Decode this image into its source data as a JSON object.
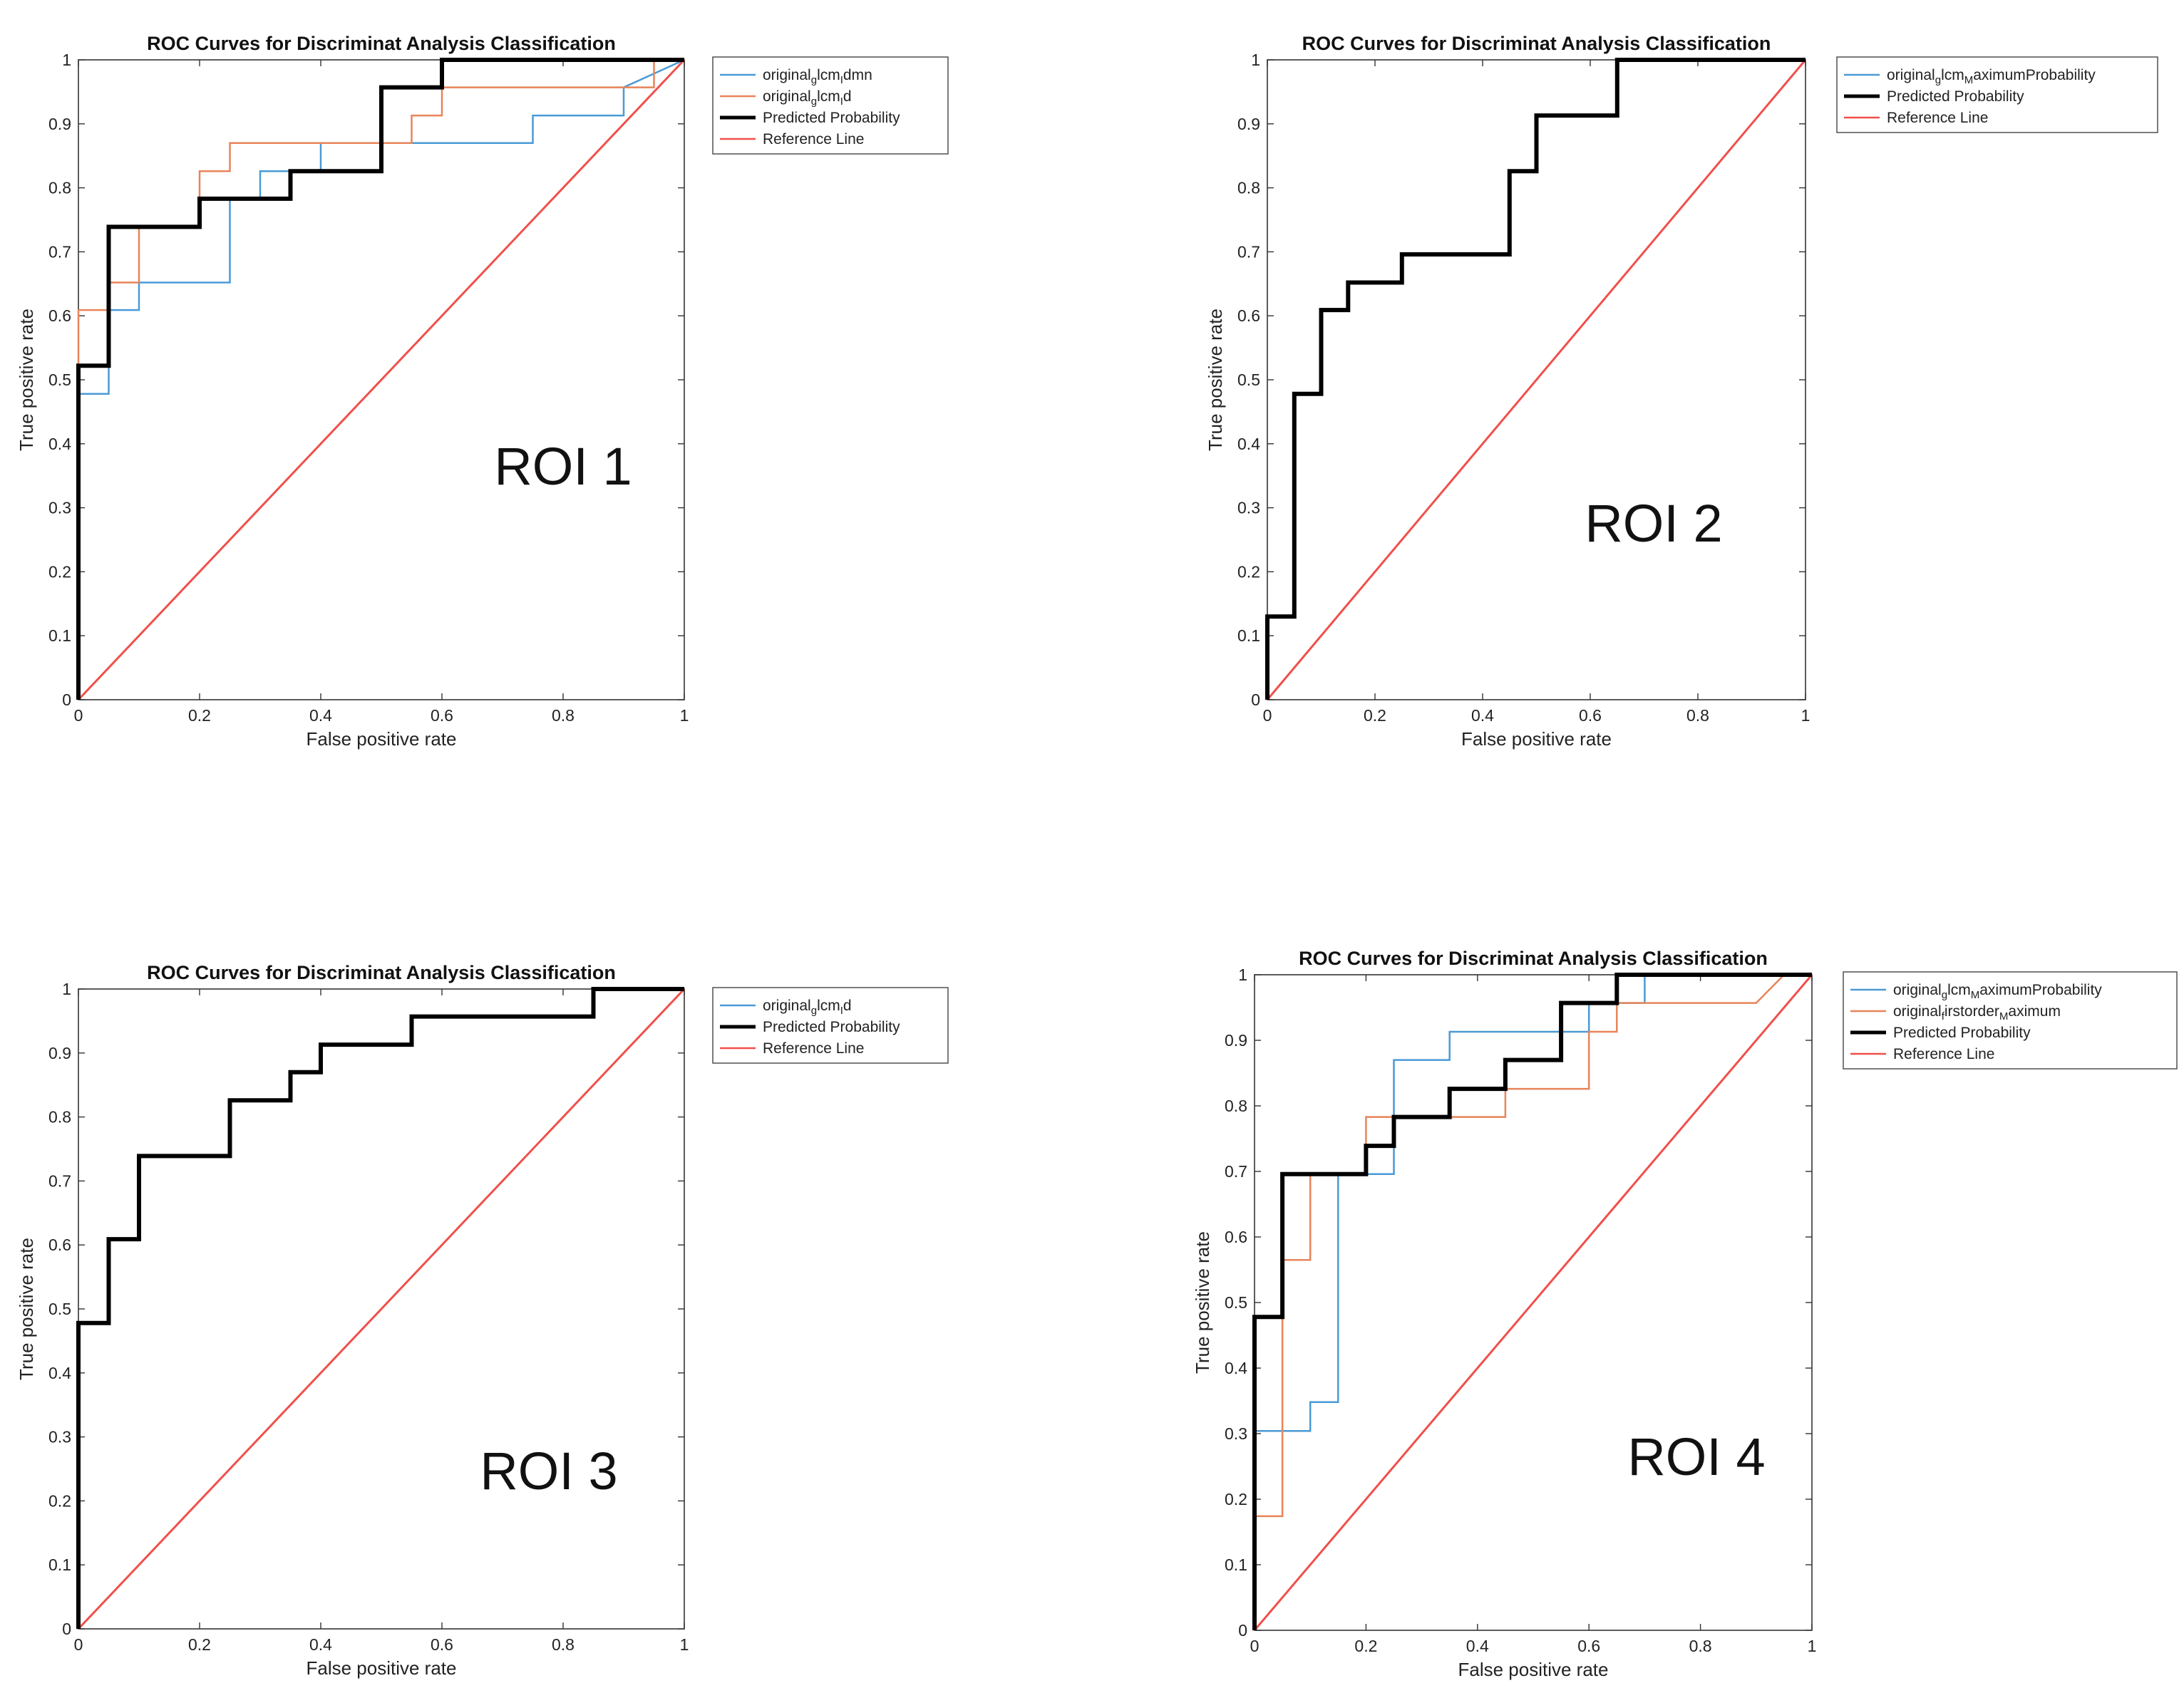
{
  "colors": {
    "blue": "#4a9ad6",
    "orange": "#e8845a",
    "black": "#000000",
    "red": "#f0504b"
  },
  "chart_data": [
    {
      "type": "line",
      "title": "ROC Curves for Discriminat Analysis Classification",
      "xlabel": "False positive rate",
      "ylabel": "True positive rate",
      "xlim": [
        0,
        1
      ],
      "ylim": [
        0,
        1
      ],
      "xticks": [
        "0",
        "0.2",
        "0.4",
        "0.6",
        "0.8",
        "1"
      ],
      "yticks": [
        "0",
        "0.1",
        "0.2",
        "0.3",
        "0.4",
        "0.5",
        "0.6",
        "0.7",
        "0.8",
        "0.9",
        "1"
      ],
      "annotation": "ROI 1",
      "series": [
        {
          "name": "original_glcm_Idmn",
          "legend_main": "original",
          "legend_sub1": "g",
          "legend_mid": "lcm",
          "legend_sub2": "I",
          "legend_end": "dmn",
          "color": "blue",
          "width": 2.5,
          "x": [
            0,
            0,
            0.05,
            0.05,
            0.1,
            0.1,
            0.25,
            0.25,
            0.3,
            0.3,
            0.4,
            0.4,
            0.5,
            0.5,
            0.75,
            0.75,
            0.9,
            0.9,
            1
          ],
          "y": [
            0,
            0.478,
            0.478,
            0.609,
            0.609,
            0.652,
            0.652,
            0.783,
            0.783,
            0.826,
            0.826,
            0.87,
            0.87,
            0.87,
            0.87,
            0.913,
            0.913,
            0.957,
            1
          ]
        },
        {
          "name": "original_glcm_Id",
          "legend_main": "original",
          "legend_sub1": "g",
          "legend_mid": "lcm",
          "legend_sub2": "I",
          "legend_end": "d",
          "color": "orange",
          "width": 2.5,
          "x": [
            0,
            0,
            0.05,
            0.05,
            0.1,
            0.1,
            0.2,
            0.2,
            0.25,
            0.25,
            0.55,
            0.55,
            0.6,
            0.6,
            0.95,
            0.95,
            1
          ],
          "y": [
            0,
            0.609,
            0.609,
            0.652,
            0.652,
            0.739,
            0.739,
            0.826,
            0.826,
            0.87,
            0.87,
            0.913,
            0.913,
            0.957,
            0.957,
            1,
            1
          ]
        },
        {
          "name": "Predicted Probability",
          "legend_main": "Predicted Probability",
          "color": "black",
          "width": 6,
          "x": [
            0,
            0,
            0.05,
            0.05,
            0.2,
            0.2,
            0.35,
            0.35,
            0.5,
            0.5,
            0.6,
            0.6,
            1
          ],
          "y": [
            0,
            0.522,
            0.522,
            0.739,
            0.739,
            0.783,
            0.783,
            0.826,
            0.826,
            0.957,
            0.957,
            1,
            1
          ]
        },
        {
          "name": "Reference Line",
          "legend_main": "Reference Line",
          "color": "red",
          "width": 3,
          "x": [
            0,
            1
          ],
          "y": [
            0,
            1
          ]
        }
      ]
    },
    {
      "type": "line",
      "title": "ROC Curves for Discriminat Analysis Classification",
      "xlabel": "False positive rate",
      "ylabel": "True positive rate",
      "xlim": [
        0,
        1
      ],
      "ylim": [
        0,
        1
      ],
      "xticks": [
        "0",
        "0.2",
        "0.4",
        "0.6",
        "0.8",
        "1"
      ],
      "yticks": [
        "0",
        "0.1",
        "0.2",
        "0.3",
        "0.4",
        "0.5",
        "0.6",
        "0.7",
        "0.8",
        "0.9",
        "1"
      ],
      "annotation": "ROI 2",
      "series": [
        {
          "name": "original_glcm_MaximumProbability",
          "legend_main": "original",
          "legend_sub1": "g",
          "legend_mid": "lcm",
          "legend_sub2": "M",
          "legend_end": "aximumProbability",
          "color": "blue",
          "width": 2.5,
          "x": [],
          "y": []
        },
        {
          "name": "Predicted Probability",
          "legend_main": "Predicted Probability",
          "color": "black",
          "width": 6,
          "x": [
            0,
            0,
            0.05,
            0.05,
            0.1,
            0.1,
            0.15,
            0.15,
            0.25,
            0.25,
            0.45,
            0.45,
            0.5,
            0.5,
            0.65,
            0.65,
            1
          ],
          "y": [
            0,
            0.13,
            0.13,
            0.478,
            0.478,
            0.609,
            0.609,
            0.652,
            0.652,
            0.696,
            0.696,
            0.826,
            0.826,
            0.913,
            0.913,
            1,
            1
          ]
        },
        {
          "name": "Reference Line",
          "legend_main": "Reference Line",
          "color": "red",
          "width": 3,
          "x": [
            0,
            1
          ],
          "y": [
            0,
            1
          ]
        }
      ]
    },
    {
      "type": "line",
      "title": "ROC Curves for Discriminat Analysis Classification",
      "xlabel": "False positive rate",
      "ylabel": "True positive rate",
      "xlim": [
        0,
        1
      ],
      "ylim": [
        0,
        1
      ],
      "xticks": [
        "0",
        "0.2",
        "0.4",
        "0.6",
        "0.8",
        "1"
      ],
      "yticks": [
        "0",
        "0.1",
        "0.2",
        "0.3",
        "0.4",
        "0.5",
        "0.6",
        "0.7",
        "0.8",
        "0.9",
        "1"
      ],
      "annotation": "ROI 3",
      "series": [
        {
          "name": "original_glcm_Id",
          "legend_main": "original",
          "legend_sub1": "g",
          "legend_mid": "lcm",
          "legend_sub2": "I",
          "legend_end": "d",
          "color": "blue",
          "width": 2.5,
          "x": [],
          "y": []
        },
        {
          "name": "Predicted Probability",
          "legend_main": "Predicted Probability",
          "color": "black",
          "width": 6,
          "x": [
            0,
            0,
            0.05,
            0.05,
            0.1,
            0.1,
            0.25,
            0.25,
            0.35,
            0.35,
            0.4,
            0.4,
            0.55,
            0.55,
            0.85,
            0.85,
            1
          ],
          "y": [
            0,
            0.478,
            0.478,
            0.609,
            0.609,
            0.739,
            0.739,
            0.826,
            0.826,
            0.87,
            0.87,
            0.913,
            0.913,
            0.957,
            0.957,
            1,
            1
          ]
        },
        {
          "name": "Reference Line",
          "legend_main": "Reference Line",
          "color": "red",
          "width": 3,
          "x": [
            0,
            1
          ],
          "y": [
            0,
            1
          ]
        }
      ]
    },
    {
      "type": "line",
      "title": "ROC Curves for Discriminat Analysis Classification",
      "xlabel": "False positive rate",
      "ylabel": "True positive rate",
      "xlim": [
        0,
        1
      ],
      "ylim": [
        0,
        1
      ],
      "xticks": [
        "0",
        "0.2",
        "0.4",
        "0.6",
        "0.8",
        "1"
      ],
      "yticks": [
        "0",
        "0.1",
        "0.2",
        "0.3",
        "0.4",
        "0.5",
        "0.6",
        "0.7",
        "0.8",
        "0.9",
        "1"
      ],
      "annotation": "ROI 4",
      "series": [
        {
          "name": "original_glcm_MaximumProbability",
          "legend_main": "original",
          "legend_sub1": "g",
          "legend_mid": "lcm",
          "legend_sub2": "M",
          "legend_end": "aximumProbability",
          "color": "blue",
          "width": 2.5,
          "x": [
            0,
            0,
            0.1,
            0.1,
            0.15,
            0.15,
            0.25,
            0.25,
            0.35,
            0.35,
            0.6,
            0.6,
            0.7,
            0.7,
            1
          ],
          "y": [
            0,
            0.304,
            0.304,
            0.348,
            0.348,
            0.696,
            0.696,
            0.87,
            0.87,
            0.913,
            0.913,
            0.957,
            0.957,
            1,
            1
          ]
        },
        {
          "name": "original_firstorder_Maximum",
          "legend_main": "original",
          "legend_sub1": "f",
          "legend_mid": "irstorder",
          "legend_sub2": "M",
          "legend_end": "aximum",
          "color": "orange",
          "width": 2.5,
          "x": [
            0,
            0,
            0.05,
            0.05,
            0.1,
            0.1,
            0.2,
            0.2,
            0.45,
            0.45,
            0.6,
            0.6,
            0.65,
            0.65,
            0.9,
            0.95,
            1
          ],
          "y": [
            0,
            0.174,
            0.174,
            0.565,
            0.565,
            0.696,
            0.696,
            0.783,
            0.783,
            0.826,
            0.826,
            0.913,
            0.913,
            0.957,
            0.957,
            1,
            1
          ]
        },
        {
          "name": "Predicted Probability",
          "legend_main": "Predicted Probability",
          "color": "black",
          "width": 6,
          "x": [
            0,
            0,
            0.05,
            0.05,
            0.2,
            0.2,
            0.25,
            0.25,
            0.35,
            0.35,
            0.45,
            0.45,
            0.55,
            0.55,
            0.65,
            0.65,
            1
          ],
          "y": [
            0,
            0.478,
            0.478,
            0.696,
            0.696,
            0.739,
            0.739,
            0.783,
            0.783,
            0.826,
            0.826,
            0.87,
            0.87,
            0.957,
            0.957,
            1,
            1
          ]
        },
        {
          "name": "Reference Line",
          "legend_main": "Reference Line",
          "color": "red",
          "width": 3,
          "x": [
            0,
            1
          ],
          "y": [
            0,
            1
          ]
        }
      ]
    }
  ]
}
